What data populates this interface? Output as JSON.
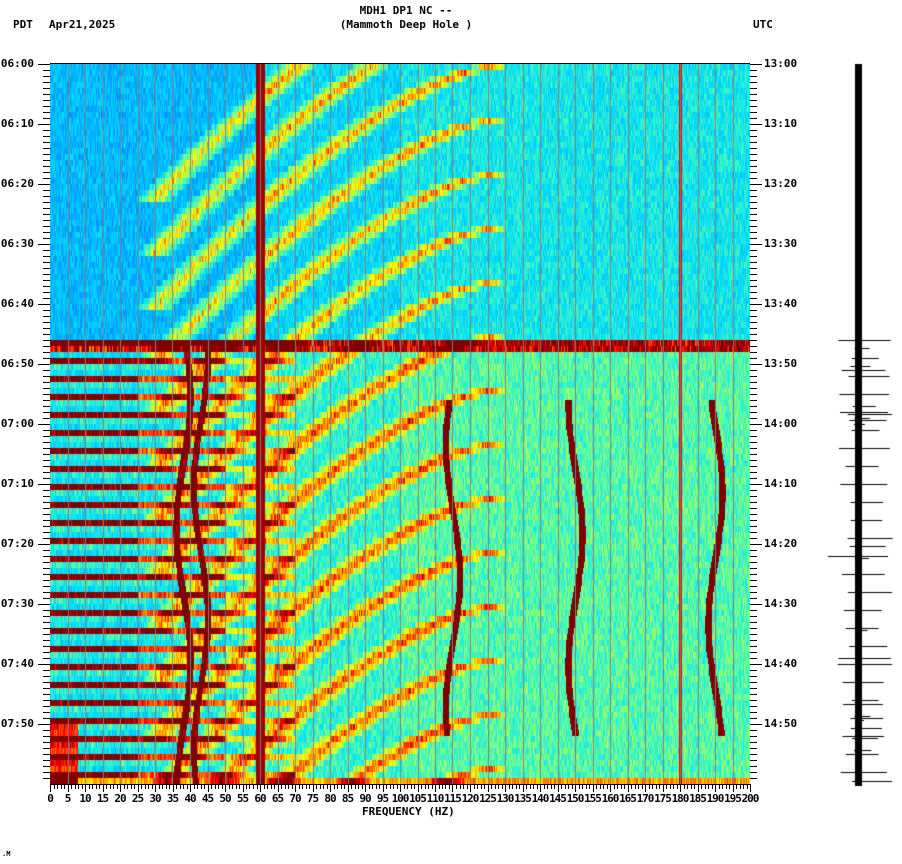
{
  "header": {
    "station_line": "MDH1 DP1 NC --",
    "site_line": "(Mammoth Deep Hole )",
    "left_timezone": "PDT",
    "date": "Apr21,2025",
    "right_timezone": "UTC"
  },
  "footer_mark": ".M",
  "colors": {
    "background": "#ffffff",
    "axis": "#000000",
    "gridline": "#808080",
    "colormap": [
      "#0000aa",
      "#0060ff",
      "#00a0ff",
      "#00e0ff",
      "#60ff9f",
      "#ffff00",
      "#ff8000",
      "#ff0000",
      "#800000"
    ]
  },
  "chart_data": {
    "type": "heatmap",
    "title": "MDH1 DP1 NC -- (Mammoth Deep Hole )",
    "subtitle": "Apr21,2025",
    "xlabel": "FREQUENCY (HZ)",
    "ylabel_left": "PDT",
    "ylabel_right": "UTC",
    "xlim": [
      0,
      200
    ],
    "x_ticks": [
      0,
      5,
      10,
      15,
      20,
      25,
      30,
      35,
      40,
      45,
      50,
      55,
      60,
      65,
      70,
      75,
      80,
      85,
      90,
      95,
      100,
      105,
      110,
      115,
      120,
      125,
      130,
      135,
      140,
      145,
      150,
      155,
      160,
      165,
      170,
      175,
      180,
      185,
      190,
      195,
      200
    ],
    "x_tick_labels": [
      "0",
      "5",
      "10",
      "15",
      "20",
      "25",
      "30",
      "35",
      "40",
      "45",
      "50",
      "55",
      "60",
      "65",
      "70",
      "75",
      "80",
      "85",
      "90",
      "95",
      "100",
      "105",
      "110",
      "115",
      "120",
      "125",
      "130",
      "135",
      "140",
      "145",
      "150",
      "155",
      "160",
      "165",
      "170",
      "175",
      "180",
      "185",
      "190",
      "195",
      "200"
    ],
    "y_ticks_left": [
      "06:00",
      "06:10",
      "06:20",
      "06:30",
      "06:40",
      "06:50",
      "07:00",
      "07:10",
      "07:20",
      "07:30",
      "07:40",
      "07:50"
    ],
    "y_ticks_right": [
      "13:00",
      "13:10",
      "13:20",
      "13:30",
      "13:40",
      "13:50",
      "14:00",
      "14:10",
      "14:20",
      "14:30",
      "14:40",
      "14:50"
    ],
    "time_span_minutes": 120,
    "minor_tick_minutes": 1,
    "grid": "vertical lines every 5 Hz",
    "features": {
      "persistent_lines_hz": [
        60,
        180
      ],
      "strong_60hz_line": true,
      "broadband_row_at_minute": 46.5,
      "banded_low_freq_rows_start_minute": 46,
      "band_period_minutes": 3,
      "gliding_tones": "descending-frequency curves (arcs) repeating throughout, spanning roughly 20-125 Hz",
      "drifting_lines_hz": [
        38,
        43,
        115,
        150,
        190
      ],
      "low_freq_energy_hz": [
        0,
        8
      ]
    },
    "side_trace": "seismogram amplitude trace, quiet until ~06:46 then impulsive spikes"
  }
}
